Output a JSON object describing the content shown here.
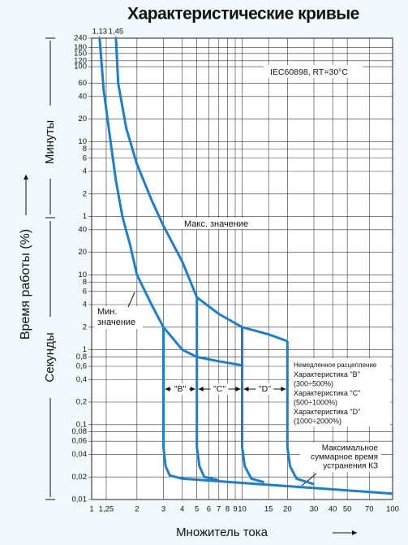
{
  "chart_data": {
    "type": "line",
    "title": "Характеристические кривые",
    "xlabel": "Множитель тока",
    "ylabel": "Время работы (%)",
    "minutes_label": "Минуты",
    "seconds_label": "Секунды",
    "log_x": true,
    "log_y": true,
    "grid": true,
    "xlim": [
      1,
      100
    ],
    "ylim": [
      0.01,
      14400
    ],
    "xticks": [
      1,
      {
        "value": 1.25,
        "label": "1,25"
      },
      2,
      3,
      4,
      5,
      6,
      7,
      8,
      9,
      10,
      15,
      20,
      30,
      40,
      50,
      70,
      100
    ],
    "xticks_top": [
      {
        "value": 1.13,
        "label": "1,13"
      },
      {
        "value": 1.45,
        "label": "1,45"
      }
    ],
    "yticks": [
      {
        "value": 14400,
        "label": "240"
      },
      {
        "value": 10800,
        "label": "180"
      },
      {
        "value": 9000,
        "label": "150"
      },
      {
        "value": 7200,
        "label": "120"
      },
      {
        "value": 6000,
        "label": "100"
      },
      {
        "value": 3600,
        "label": "60"
      },
      {
        "value": 2400,
        "label": "40"
      },
      {
        "value": 1200,
        "label": "20"
      },
      {
        "value": 600,
        "label": "10"
      },
      {
        "value": 480,
        "label": "8"
      },
      {
        "value": 360,
        "label": "6"
      },
      {
        "value": 240,
        "label": "4"
      },
      {
        "value": 120,
        "label": "2"
      },
      {
        "value": 60,
        "label": "1"
      },
      40,
      20,
      10,
      8,
      6,
      4,
      2,
      1,
      {
        "value": 0.8,
        "label": "0,8"
      },
      {
        "value": 0.6,
        "label": "0,6"
      },
      {
        "value": 0.4,
        "label": "0,4"
      },
      {
        "value": 0.2,
        "label": "0,2"
      },
      {
        "value": 0.1,
        "label": "0,1"
      },
      {
        "value": 0.08,
        "label": "0,08"
      },
      {
        "value": 0.06,
        "label": "0,06"
      },
      {
        "value": 0.04,
        "label": "0,04"
      },
      {
        "value": 0.02,
        "label": "0,02"
      },
      {
        "value": 0.01,
        "label": "0,01"
      }
    ],
    "series": [
      {
        "color": "#1a7fd0",
        "x": [
          1.13,
          1.2,
          1.3,
          1.45,
          1.6,
          1.8,
          2,
          2.5,
          3,
          4,
          5,
          7,
          10
        ],
        "values": [
          14400,
          3000,
          900,
          180,
          60,
          25,
          10,
          4,
          2,
          1,
          0.8,
          0.7,
          0.62
        ]
      },
      {
        "color": "#1a7fd0",
        "x": [
          1.45,
          1.5,
          1.7,
          2,
          2.5,
          3,
          4,
          5,
          7,
          10,
          15,
          20
        ],
        "values": [
          14400,
          3600,
          900,
          300,
          100,
          45,
          15,
          5,
          3,
          2,
          1.6,
          1.3
        ]
      },
      {
        "color": "#1a7fd0",
        "x": [
          3,
          3,
          3.1,
          3.3,
          4
        ],
        "values": [
          2,
          0.05,
          0.028,
          0.021,
          0.019
        ]
      },
      {
        "color": "#1a7fd0",
        "x": [
          5,
          5,
          5.2,
          5.6,
          7
        ],
        "values": [
          5,
          0.05,
          0.028,
          0.02,
          0.018
        ]
      },
      {
        "color": "#1a7fd0",
        "x": [
          10,
          10,
          10.4,
          11.5,
          14
        ],
        "values": [
          2,
          0.05,
          0.028,
          0.019,
          0.017
        ]
      },
      {
        "color": "#1a7fd0",
        "x": [
          20,
          20,
          20.8,
          23,
          30
        ],
        "values": [
          1.3,
          0.05,
          0.028,
          0.019,
          0.016
        ]
      },
      {
        "color": "#1a7fd0",
        "x": [
          4,
          100
        ],
        "values": [
          0.019,
          0.012
        ]
      }
    ],
    "standard_note": "IEC60898,  RT=30°C",
    "max_label": "Макс. значение",
    "min_label": [
      "Мин.",
      "значение"
    ],
    "range_labels": [
      "\"B\"",
      "\"C\"",
      "\"D\""
    ],
    "trip_box": [
      "Немедленное расцепление",
      "Характеристика \"B\"",
      "(300÷500%)",
      "Характеристика \"C\"",
      "(500÷1000%)",
      "Характеристика \"D\"",
      "(1000÷2000%)"
    ],
    "clearance_label": [
      "Максимальное",
      "суммарное время",
      "устранения КЗ"
    ]
  }
}
